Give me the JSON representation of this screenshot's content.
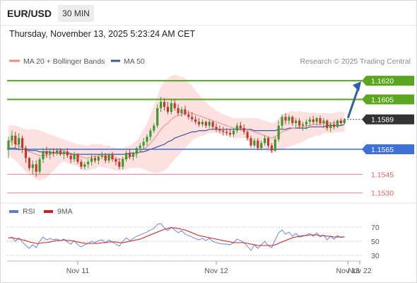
{
  "header": {
    "symbol": "EUR/USD",
    "timeframe": "30 MIN",
    "datetime": "Thursday, November 13, 2025 5:23:24 AM CET"
  },
  "credit": "Research © 2025 Trading Central",
  "colors": {
    "bull": "#3c9a2c",
    "bear": "#c0392b",
    "ma20": "#f08a8a",
    "ma50": "#3a5a99",
    "band_fill": "#fde0e0",
    "resistance": "#5aa61e",
    "support_blue": "#3d6fd6",
    "support_red": "#e06060",
    "current": "#333333",
    "rsi": "#5b7fd4",
    "rsi_ma": "#cc2222"
  },
  "chart_data": [
    {
      "type": "candlestick",
      "legend": [
        {
          "name": "MA 20 + Bollinger Bands",
          "color": "#f08a8a"
        },
        {
          "name": "MA 50",
          "color": "#3a5a99"
        }
      ],
      "levels": [
        {
          "value": 1.162,
          "label": "1.1620",
          "kind": "resistance"
        },
        {
          "value": 1.1605,
          "label": "1.1605",
          "kind": "resistance"
        },
        {
          "value": 1.1589,
          "label": "1.1589",
          "kind": "current"
        },
        {
          "value": 1.1565,
          "label": "1.1565",
          "kind": "support_strong"
        },
        {
          "value": 1.1545,
          "label": "1.1545",
          "kind": "support"
        },
        {
          "value": 1.153,
          "label": "1.1530",
          "kind": "support"
        }
      ],
      "ylim": [
        1.1527,
        1.1628
      ],
      "forecast_target": 1.162,
      "candles": [
        [
          1.1565,
          1.1575,
          1.1558,
          1.1572
        ],
        [
          1.1572,
          1.158,
          1.1568,
          1.1576
        ],
        [
          1.1576,
          1.1579,
          1.1566,
          1.1569
        ],
        [
          1.1569,
          1.1578,
          1.1564,
          1.1574
        ],
        [
          1.1574,
          1.1576,
          1.1562,
          1.1566
        ],
        [
          1.1566,
          1.1568,
          1.1554,
          1.1558
        ],
        [
          1.1558,
          1.1559,
          1.1548,
          1.155
        ],
        [
          1.155,
          1.1556,
          1.1545,
          1.1553
        ],
        [
          1.1553,
          1.1556,
          1.1543,
          1.1547
        ],
        [
          1.1547,
          1.1559,
          1.1545,
          1.1557
        ],
        [
          1.1557,
          1.1566,
          1.1554,
          1.1563
        ],
        [
          1.1563,
          1.1567,
          1.1558,
          1.1561
        ],
        [
          1.1561,
          1.1566,
          1.1557,
          1.1563
        ],
        [
          1.1563,
          1.1566,
          1.1559,
          1.1562
        ],
        [
          1.1562,
          1.1566,
          1.156,
          1.1564
        ],
        [
          1.1564,
          1.1566,
          1.156,
          1.1561
        ],
        [
          1.1561,
          1.1564,
          1.1557,
          1.1563
        ],
        [
          1.1563,
          1.1566,
          1.1558,
          1.156
        ],
        [
          1.156,
          1.1562,
          1.1554,
          1.1557
        ],
        [
          1.1557,
          1.1563,
          1.1555,
          1.1561
        ],
        [
          1.1561,
          1.1562,
          1.1553,
          1.1555
        ],
        [
          1.1555,
          1.1557,
          1.1549,
          1.1551
        ],
        [
          1.1551,
          1.1555,
          1.1549,
          1.1553
        ],
        [
          1.1553,
          1.1557,
          1.155,
          1.1555
        ],
        [
          1.1555,
          1.1561,
          1.1552,
          1.1558
        ],
        [
          1.1558,
          1.156,
          1.1554,
          1.1556
        ],
        [
          1.1556,
          1.156,
          1.1553,
          1.1559
        ],
        [
          1.1559,
          1.1563,
          1.1557,
          1.156
        ],
        [
          1.156,
          1.1562,
          1.1554,
          1.1556
        ],
        [
          1.1556,
          1.1562,
          1.1554,
          1.1561
        ],
        [
          1.1561,
          1.1563,
          1.1555,
          1.1557
        ],
        [
          1.1557,
          1.1559,
          1.1552,
          1.1555
        ],
        [
          1.1555,
          1.1558,
          1.1549,
          1.1551
        ],
        [
          1.1551,
          1.1559,
          1.1549,
          1.1557
        ],
        [
          1.1557,
          1.1564,
          1.1555,
          1.1562
        ],
        [
          1.1562,
          1.1565,
          1.1557,
          1.1559
        ],
        [
          1.1559,
          1.1563,
          1.1556,
          1.1562
        ],
        [
          1.1562,
          1.1567,
          1.1558,
          1.1566
        ],
        [
          1.1566,
          1.157,
          1.1562,
          1.1568
        ],
        [
          1.1568,
          1.1574,
          1.1565,
          1.1571
        ],
        [
          1.1571,
          1.1577,
          1.1568,
          1.1575
        ],
        [
          1.1575,
          1.1582,
          1.1572,
          1.158
        ],
        [
          1.158,
          1.1586,
          1.1578,
          1.1584
        ],
        [
          1.1584,
          1.1601,
          1.1582,
          1.1598
        ],
        [
          1.1598,
          1.1607,
          1.1595,
          1.1603
        ],
        [
          1.1603,
          1.1606,
          1.1596,
          1.1599
        ],
        [
          1.1599,
          1.1603,
          1.1593,
          1.1595
        ],
        [
          1.1595,
          1.1605,
          1.1593,
          1.1602
        ],
        [
          1.1602,
          1.1605,
          1.1596,
          1.1598
        ],
        [
          1.1598,
          1.1601,
          1.1592,
          1.1594
        ],
        [
          1.1594,
          1.1599,
          1.1591,
          1.1597
        ],
        [
          1.1597,
          1.16,
          1.1592,
          1.1593
        ],
        [
          1.1593,
          1.1596,
          1.1589,
          1.1591
        ],
        [
          1.1591,
          1.1595,
          1.1587,
          1.1589
        ],
        [
          1.1589,
          1.1592,
          1.1585,
          1.1587
        ],
        [
          1.1587,
          1.159,
          1.1583,
          1.1585
        ],
        [
          1.1585,
          1.1589,
          1.1583,
          1.1587
        ],
        [
          1.1587,
          1.1588,
          1.1582,
          1.1584
        ],
        [
          1.1584,
          1.1589,
          1.1582,
          1.1587
        ],
        [
          1.1587,
          1.1588,
          1.1581,
          1.1583
        ],
        [
          1.1583,
          1.1586,
          1.1579,
          1.1581
        ],
        [
          1.1581,
          1.1584,
          1.1578,
          1.158
        ],
        [
          1.158,
          1.1583,
          1.1576,
          1.1579
        ],
        [
          1.1579,
          1.1582,
          1.1576,
          1.1578
        ],
        [
          1.1578,
          1.1581,
          1.1575,
          1.1577
        ],
        [
          1.1577,
          1.1582,
          1.1575,
          1.158
        ],
        [
          1.158,
          1.1586,
          1.1578,
          1.1584
        ],
        [
          1.1584,
          1.1587,
          1.158,
          1.1582
        ],
        [
          1.1582,
          1.1585,
          1.1577,
          1.1579
        ],
        [
          1.1579,
          1.1581,
          1.1572,
          1.1574
        ],
        [
          1.1574,
          1.1576,
          1.1566,
          1.1568
        ],
        [
          1.1568,
          1.1574,
          1.1566,
          1.1572
        ],
        [
          1.1572,
          1.1574,
          1.1564,
          1.1566
        ],
        [
          1.1566,
          1.1572,
          1.1564,
          1.157
        ],
        [
          1.157,
          1.1576,
          1.1568,
          1.1574
        ],
        [
          1.1574,
          1.1575,
          1.1566,
          1.1568
        ],
        [
          1.1568,
          1.157,
          1.1562,
          1.1564
        ],
        [
          1.1564,
          1.1575,
          1.1563,
          1.1573
        ],
        [
          1.1573,
          1.1588,
          1.1571,
          1.1584
        ],
        [
          1.1584,
          1.1593,
          1.1581,
          1.1591
        ],
        [
          1.1591,
          1.1594,
          1.1585,
          1.1588
        ],
        [
          1.1588,
          1.1593,
          1.1585,
          1.1591
        ],
        [
          1.1591,
          1.1592,
          1.1584,
          1.1586
        ],
        [
          1.1586,
          1.159,
          1.1582,
          1.1588
        ],
        [
          1.1588,
          1.159,
          1.1582,
          1.1584
        ],
        [
          1.1584,
          1.1587,
          1.158,
          1.1585
        ],
        [
          1.1585,
          1.1589,
          1.1581,
          1.1587
        ],
        [
          1.1587,
          1.1591,
          1.1584,
          1.1589
        ],
        [
          1.1589,
          1.1592,
          1.1585,
          1.1587
        ],
        [
          1.1587,
          1.1591,
          1.1584,
          1.159
        ],
        [
          1.159,
          1.1592,
          1.1584,
          1.1586
        ],
        [
          1.1586,
          1.159,
          1.1582,
          1.1588
        ],
        [
          1.1588,
          1.1589,
          1.158,
          1.1582
        ],
        [
          1.1582,
          1.1587,
          1.1579,
          1.1585
        ],
        [
          1.1585,
          1.1588,
          1.1581,
          1.1583
        ],
        [
          1.1583,
          1.1589,
          1.1582,
          1.1588
        ],
        [
          1.1588,
          1.159,
          1.1584,
          1.1586
        ],
        [
          1.1586,
          1.159,
          1.1585,
          1.1589
        ]
      ],
      "ma20": [
        1.1572,
        1.1571,
        1.157,
        1.1568,
        1.1566,
        1.1564,
        1.1563,
        1.1562,
        1.1561,
        1.156,
        1.156,
        1.156,
        1.1561,
        1.1562,
        1.1563,
        1.1564,
        1.1564,
        1.1563,
        1.1562,
        1.1561,
        1.156,
        1.1559,
        1.1558,
        1.1558,
        1.1559,
        1.1559,
        1.156,
        1.156,
        1.1559,
        1.1559,
        1.1558,
        1.1557,
        1.1557,
        1.1557,
        1.1558,
        1.1559,
        1.156,
        1.1561,
        1.1563,
        1.1565,
        1.1567,
        1.157,
        1.1573,
        1.1577,
        1.1581,
        1.1584,
        1.1586,
        1.1589,
        1.1591,
        1.1592,
        1.1593,
        1.1594,
        1.1594,
        1.1594,
        1.1593,
        1.1592,
        1.1591,
        1.159,
        1.1589,
        1.1588,
        1.1587,
        1.1586,
        1.1585,
        1.1584,
        1.1583,
        1.1582,
        1.1582,
        1.1582,
        1.1582,
        1.1581,
        1.158,
        1.1579,
        1.1578,
        1.1577,
        1.1576,
        1.1575,
        1.1574,
        1.1575,
        1.1577,
        1.1579,
        1.158,
        1.1581,
        1.1582,
        1.1582,
        1.1583,
        1.1583,
        1.1584,
        1.1584,
        1.1585,
        1.1585,
        1.1585,
        1.1586,
        1.1586,
        1.1586,
        1.1586,
        1.1587,
        1.1587,
        1.1587
      ],
      "band_width": [
        0.0012,
        0.0013,
        0.0014,
        0.0015,
        0.0016,
        0.0017,
        0.0018,
        0.0019,
        0.002,
        0.002,
        0.0019,
        0.0018,
        0.0016,
        0.0014,
        0.0012,
        0.001,
        0.0009,
        0.0009,
        0.0009,
        0.0009,
        0.0009,
        0.001,
        0.001,
        0.001,
        0.001,
        0.001,
        0.0009,
        0.0009,
        0.0009,
        0.0009,
        0.0009,
        0.0009,
        0.0009,
        0.0009,
        0.0009,
        0.0009,
        0.001,
        0.0011,
        0.0013,
        0.0016,
        0.0019,
        0.0023,
        0.0027,
        0.0031,
        0.0034,
        0.0036,
        0.0036,
        0.0035,
        0.0034,
        0.0032,
        0.003,
        0.0028,
        0.0025,
        0.0022,
        0.0019,
        0.0017,
        0.0015,
        0.0013,
        0.0011,
        0.001,
        0.0009,
        0.0009,
        0.0008,
        0.0008,
        0.0008,
        0.0008,
        0.0008,
        0.0008,
        0.0008,
        0.0009,
        0.001,
        0.0011,
        0.0012,
        0.0012,
        0.0012,
        0.0012,
        0.0012,
        0.0012,
        0.0013,
        0.0014,
        0.0014,
        0.0014,
        0.0014,
        0.0013,
        0.0013,
        0.0012,
        0.0011,
        0.001,
        0.001,
        0.0009,
        0.0009,
        0.0008,
        0.0008,
        0.0008,
        0.0008,
        0.0008,
        0.0008,
        0.0008
      ],
      "ma50": [
        1.1566,
        1.1566,
        1.1566,
        1.1565,
        1.1565,
        1.1565,
        1.1564,
        1.1564,
        1.1564,
        1.1563,
        1.1563,
        1.1563,
        1.1563,
        1.1562,
        1.1562,
        1.1562,
        1.1562,
        1.1562,
        1.1561,
        1.1561,
        1.1561,
        1.1561,
        1.1561,
        1.1561,
        1.1561,
        1.1561,
        1.1561,
        1.1561,
        1.1561,
        1.1561,
        1.1561,
        1.1561,
        1.1561,
        1.1561,
        1.1561,
        1.1562,
        1.1562,
        1.1562,
        1.1563,
        1.1563,
        1.1564,
        1.1565,
        1.1566,
        1.1567,
        1.1568,
        1.1569,
        1.1571,
        1.1572,
        1.1574,
        1.1575,
        1.1576,
        1.1577,
        1.1578,
        1.1579,
        1.1579,
        1.158,
        1.158,
        1.158,
        1.1581,
        1.1581,
        1.1581,
        1.1581,
        1.1581,
        1.1581,
        1.1581,
        1.1581,
        1.1581,
        1.1581,
        1.1581,
        1.1581,
        1.1581,
        1.158,
        1.158,
        1.158,
        1.158,
        1.158,
        1.158,
        1.158,
        1.1581,
        1.1581,
        1.1581,
        1.1582,
        1.1582,
        1.1582,
        1.1582,
        1.1582,
        1.1582,
        1.1583,
        1.1583,
        1.1583,
        1.1583,
        1.1583,
        1.1584,
        1.1584,
        1.1584,
        1.1584,
        1.1584,
        1.1585
      ]
    },
    {
      "type": "line",
      "legend": [
        {
          "name": "RSI",
          "color": "#5b7fd4"
        },
        {
          "name": "9MA",
          "color": "#cc2222"
        }
      ],
      "y_ticks": [
        70,
        50,
        30
      ],
      "ylim": [
        25,
        78
      ],
      "rsi": [
        54,
        56,
        50,
        55,
        49,
        44,
        40,
        45,
        41,
        50,
        56,
        52,
        54,
        52,
        53,
        51,
        53,
        49,
        46,
        51,
        45,
        42,
        45,
        47,
        50,
        48,
        51,
        52,
        48,
        52,
        49,
        46,
        43,
        50,
        55,
        51,
        54,
        57,
        59,
        61,
        63,
        66,
        68,
        74,
        75,
        69,
        65,
        70,
        66,
        62,
        65,
        60,
        58,
        56,
        54,
        52,
        54,
        51,
        54,
        50,
        48,
        47,
        46,
        46,
        45,
        48,
        53,
        51,
        48,
        43,
        37,
        45,
        40,
        45,
        50,
        44,
        41,
        52,
        62,
        66,
        60,
        63,
        57,
        61,
        56,
        57,
        59,
        61,
        57,
        62,
        56,
        59,
        52,
        57,
        53,
        58,
        55,
        57
      ],
      "rsi_ma": [
        55,
        55,
        54,
        53,
        52,
        51,
        49,
        48,
        47,
        47,
        48,
        48,
        49,
        50,
        51,
        51,
        52,
        51,
        51,
        50,
        49,
        48,
        47,
        47,
        47,
        47,
        47,
        48,
        48,
        49,
        49,
        49,
        48,
        48,
        49,
        50,
        51,
        52,
        53,
        55,
        57,
        59,
        61,
        63,
        65,
        67,
        68,
        69,
        69,
        68,
        67,
        66,
        64,
        62,
        60,
        58,
        57,
        56,
        55,
        54,
        53,
        52,
        51,
        50,
        49,
        48,
        48,
        48,
        48,
        47,
        46,
        45,
        44,
        44,
        44,
        44,
        44,
        45,
        47,
        49,
        51,
        53,
        55,
        56,
        57,
        58,
        58,
        59,
        59,
        59,
        58,
        58,
        57,
        57,
        56,
        56,
        56,
        56
      ]
    }
  ],
  "time_axis": [
    {
      "label": "Nov 11",
      "candle": 20
    },
    {
      "label": "Nov 12",
      "candle": 60
    },
    {
      "label": "Nov 13",
      "candle": 98
    },
    {
      "label": "Nov 22",
      "candle": -1
    }
  ]
}
